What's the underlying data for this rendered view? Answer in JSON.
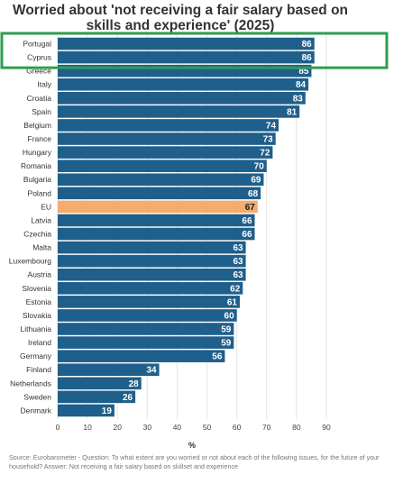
{
  "chart_data": {
    "type": "bar",
    "orientation": "horizontal",
    "title": "Worried about 'not receiving a fair salary based on skills and experience' (2025)",
    "xlabel": "%",
    "xlim": [
      0,
      90
    ],
    "xticks": [
      "0",
      "10",
      "20",
      "30",
      "40",
      "50",
      "60",
      "70",
      "80",
      "90"
    ],
    "grid": true,
    "categories": [
      "Portugal",
      "Cyprus",
      "Greece",
      "Italy",
      "Croatia",
      "Spain",
      "Belgium",
      "France",
      "Hungary",
      "Romania",
      "Bulgaria",
      "Poland",
      "EU",
      "Latvia",
      "Czechia",
      "Malta",
      "Luxembourg",
      "Austria",
      "Slovenia",
      "Estonia",
      "Slovakia",
      "Lithuania",
      "Ireland",
      "Germany",
      "Finland",
      "Netherlands",
      "Sweden",
      "Denmark"
    ],
    "values": [
      86,
      86,
      85,
      84,
      83,
      81,
      74,
      73,
      72,
      70,
      69,
      68,
      67,
      66,
      66,
      63,
      63,
      63,
      62,
      61,
      60,
      59,
      59,
      56,
      34,
      28,
      26,
      19
    ],
    "highlighted_category": "EU",
    "highlighted_group": [
      "Portugal",
      "Cyprus"
    ],
    "colors": {
      "bar": "#1f5f8b",
      "highlight_bar": "#f4ad6d",
      "box": "#2e9e4e",
      "grid": "#e3e3e3"
    },
    "source": "Source: Eurobarometer - Question: To what extent are you worried or not about each of the following issues, for the future of your household? Answer: Not receiving a fair salary based on skillset and experience"
  }
}
